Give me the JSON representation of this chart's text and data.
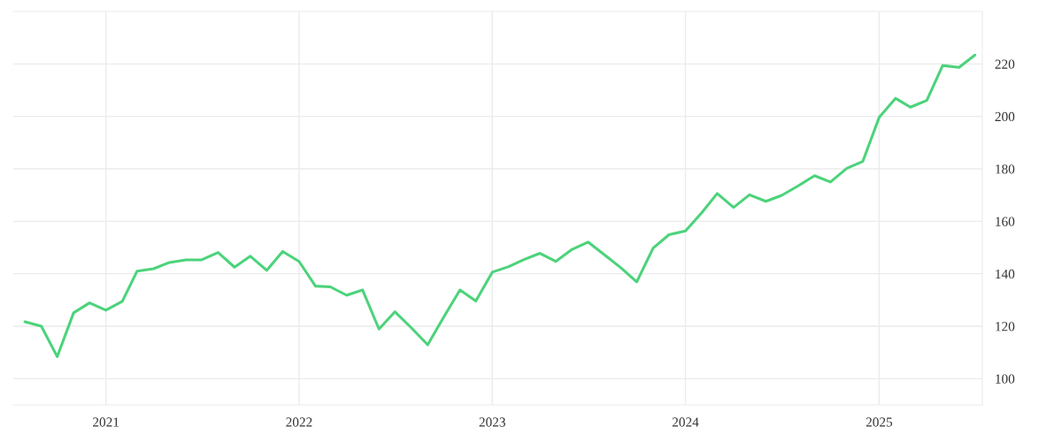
{
  "chart_data": {
    "type": "line",
    "x": [
      "2020-08",
      "2020-09",
      "2020-10",
      "2020-11",
      "2020-12",
      "2021-01",
      "2021-02",
      "2021-03",
      "2021-04",
      "2021-05",
      "2021-06",
      "2021-07",
      "2021-08",
      "2021-09",
      "2021-10",
      "2021-11",
      "2021-12",
      "2022-01",
      "2022-02",
      "2022-03",
      "2022-04",
      "2022-05",
      "2022-06",
      "2022-07",
      "2022-08",
      "2022-09",
      "2022-10",
      "2022-11",
      "2022-12",
      "2023-01",
      "2023-02",
      "2023-03",
      "2023-04",
      "2023-05",
      "2023-06",
      "2023-07",
      "2023-08",
      "2023-09",
      "2023-10",
      "2023-11",
      "2023-12",
      "2024-01",
      "2024-02",
      "2024-03",
      "2024-04",
      "2024-05",
      "2024-06",
      "2024-07",
      "2024-08",
      "2024-09",
      "2024-10",
      "2024-11",
      "2024-12",
      "2025-01",
      "2025-02",
      "2025-03",
      "2025-04",
      "2025-05",
      "2025-06",
      "2025-07"
    ],
    "series": [
      {
        "color": "#4cd37b",
        "values": [
          121.7,
          120.0,
          108.4,
          125.1,
          128.9,
          126.1,
          129.5,
          141.0,
          141.9,
          144.3,
          145.3,
          145.3,
          148.1,
          142.5,
          146.7,
          141.3,
          148.5,
          144.7,
          135.3,
          135.0,
          131.8,
          133.8,
          118.9,
          125.5,
          119.4,
          112.9,
          123.4,
          133.8,
          129.6,
          140.6,
          142.7,
          145.3,
          147.8,
          144.7,
          149.3,
          152.1,
          147.2,
          142.3,
          136.9,
          149.8,
          154.9,
          156.3,
          163.3,
          170.6,
          165.3,
          170.1,
          167.6,
          169.9,
          173.5,
          177.4,
          175.0,
          180.2,
          182.8,
          199.6,
          206.9,
          203.5,
          206.1,
          219.4,
          218.7,
          223.4
        ]
      }
    ],
    "xlim": [
      "2020-07-10",
      "2025-07-15"
    ],
    "xticks": [
      "2021",
      "2022",
      "2023",
      "2024",
      "2025"
    ],
    "ylim": [
      90,
      240
    ],
    "yticks": [
      100,
      120,
      140,
      160,
      180,
      200,
      220
    ],
    "grid": true,
    "line_style": "solid",
    "legend": false
  }
}
